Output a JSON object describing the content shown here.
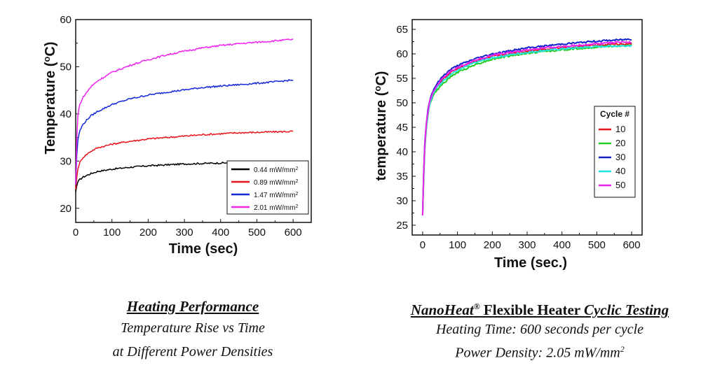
{
  "chart_data": [
    {
      "type": "line",
      "title": "",
      "xlabel": "Time (sec)",
      "ylabel": "Temperature (°C)",
      "ylabel_parts": {
        "pre": "Temperature (",
        "sup": "o",
        "post": "C)"
      },
      "xlim": [
        0,
        650
      ],
      "ylim": [
        17,
        60
      ],
      "xticks": [
        0,
        100,
        200,
        300,
        400,
        500,
        600
      ],
      "yticks": [
        20,
        30,
        40,
        50,
        60
      ],
      "grid": false,
      "legend_position": "bottom-right",
      "series": [
        {
          "name": "0.44 mW/mm2",
          "label_main": "0.44 mW/mm",
          "label_sup": "2",
          "color": "#000000",
          "x": [
            0,
            2,
            5,
            10,
            20,
            40,
            60,
            100,
            150,
            200,
            250,
            300,
            350,
            400,
            450,
            500,
            550,
            600
          ],
          "y": [
            23.5,
            24.5,
            25.5,
            26.0,
            26.6,
            27.3,
            27.8,
            28.3,
            28.7,
            29.0,
            29.2,
            29.4,
            29.5,
            29.6,
            29.7,
            29.7,
            29.8,
            29.8
          ]
        },
        {
          "name": "0.89 mW/mm2",
          "label_main": "0.89 mW/mm",
          "label_sup": "2",
          "color": "#e8141c",
          "x": [
            0,
            2,
            5,
            10,
            20,
            40,
            60,
            100,
            150,
            200,
            250,
            300,
            350,
            400,
            450,
            500,
            550,
            600
          ],
          "y": [
            24.0,
            26.0,
            28.0,
            29.5,
            30.8,
            32.0,
            32.8,
            33.6,
            34.2,
            34.7,
            35.0,
            35.3,
            35.6,
            35.8,
            36.0,
            36.1,
            36.2,
            36.3
          ]
        },
        {
          "name": "1.47 mW/mm2",
          "label_main": "1.47 mW/mm",
          "label_sup": "2",
          "color": "#1428d8",
          "x": [
            0,
            2,
            5,
            10,
            20,
            40,
            60,
            100,
            150,
            200,
            250,
            300,
            350,
            400,
            450,
            500,
            550,
            600
          ],
          "y": [
            25.0,
            30.0,
            34.0,
            36.2,
            37.8,
            39.5,
            40.5,
            42.0,
            43.2,
            44.0,
            44.6,
            45.1,
            45.6,
            45.9,
            46.2,
            46.5,
            46.8,
            47.2
          ]
        },
        {
          "name": "2.01 mW/mm2",
          "label_main": "2.01 mW/mm",
          "label_sup": "2",
          "color": "#ee22ee",
          "x": [
            0,
            2,
            5,
            10,
            20,
            40,
            60,
            100,
            150,
            200,
            250,
            300,
            350,
            400,
            450,
            500,
            550,
            600
          ],
          "y": [
            25.0,
            33.0,
            39.0,
            41.8,
            43.5,
            45.6,
            47.0,
            48.8,
            50.3,
            51.5,
            52.5,
            53.3,
            54.0,
            54.5,
            54.9,
            55.2,
            55.5,
            55.8
          ]
        }
      ]
    },
    {
      "type": "line",
      "title": "",
      "xlabel": "Time (sec.)",
      "ylabel": "temperature (°C)",
      "ylabel_parts": {
        "pre": "temperature (",
        "sup": "o",
        "post": "C)"
      },
      "xlim": [
        -30,
        630
      ],
      "ylim": [
        23,
        67
      ],
      "xticks": [
        0,
        100,
        200,
        300,
        400,
        500,
        600
      ],
      "yticks": [
        25,
        30,
        35,
        40,
        45,
        50,
        55,
        60,
        65
      ],
      "grid": false,
      "legend_title": "Cycle #",
      "legend_position": "right",
      "series": [
        {
          "name": "10",
          "color": "#e8141c",
          "x": [
            0,
            2,
            5,
            10,
            15,
            20,
            30,
            40,
            60,
            80,
            100,
            150,
            200,
            250,
            300,
            350,
            400,
            450,
            500,
            550,
            600
          ],
          "y": [
            27.0,
            33.0,
            40.0,
            45.0,
            48.0,
            50.0,
            52.0,
            53.2,
            55.0,
            56.2,
            57.0,
            58.5,
            59.5,
            60.0,
            60.5,
            61.0,
            61.2,
            61.5,
            61.8,
            62.0,
            62.0
          ]
        },
        {
          "name": "20",
          "color": "#22cc22",
          "x": [
            0,
            2,
            5,
            10,
            15,
            20,
            30,
            40,
            60,
            80,
            100,
            150,
            200,
            250,
            300,
            350,
            400,
            450,
            500,
            550,
            600
          ],
          "y": [
            27.0,
            32.0,
            39.0,
            44.5,
            47.5,
            49.5,
            51.5,
            52.5,
            54.0,
            55.3,
            56.2,
            57.8,
            58.9,
            59.6,
            60.1,
            60.5,
            60.8,
            61.1,
            61.4,
            61.6,
            61.7
          ]
        },
        {
          "name": "30",
          "color": "#1422cc",
          "x": [
            0,
            2,
            5,
            10,
            15,
            20,
            30,
            40,
            60,
            80,
            100,
            150,
            200,
            250,
            300,
            350,
            400,
            450,
            500,
            550,
            600
          ],
          "y": [
            27.0,
            33.5,
            40.5,
            45.5,
            48.5,
            50.5,
            52.5,
            53.8,
            55.6,
            56.8,
            57.6,
            59.0,
            60.0,
            60.6,
            61.2,
            61.6,
            62.0,
            62.3,
            62.6,
            62.8,
            63.0
          ]
        },
        {
          "name": "40",
          "color": "#22e4e4",
          "x": [
            0,
            2,
            5,
            10,
            15,
            20,
            30,
            40,
            60,
            80,
            100,
            150,
            200,
            250,
            300,
            350,
            400,
            450,
            500,
            550,
            600
          ],
          "y": [
            27.0,
            32.5,
            39.5,
            44.8,
            47.8,
            49.8,
            51.8,
            53.0,
            54.6,
            55.8,
            56.6,
            58.2,
            59.2,
            59.8,
            60.3,
            60.7,
            61.0,
            61.3,
            61.5,
            61.6,
            61.7
          ]
        },
        {
          "name": "50",
          "color": "#ee22ee",
          "x": [
            0,
            2,
            5,
            10,
            15,
            20,
            30,
            40,
            60,
            80,
            100,
            150,
            200,
            250,
            300,
            350,
            400,
            450,
            500,
            550,
            600
          ],
          "y": [
            27.0,
            33.0,
            40.0,
            45.2,
            48.2,
            50.2,
            52.2,
            53.4,
            55.2,
            56.4,
            57.2,
            58.7,
            59.7,
            60.3,
            60.8,
            61.2,
            61.5,
            61.8,
            62.1,
            62.3,
            62.4
          ]
        }
      ]
    }
  ],
  "captions": {
    "left": {
      "title": "Heating Performance",
      "line1": "Temperature Rise vs Time",
      "line2": "at Different Power Densities"
    },
    "right": {
      "title_brand": "NanoHeat",
      "title_reg": "®",
      "title_mid": " Flexible Heater ",
      "title_end": "Cyclic Testing",
      "line1": "Heating Time: 600 seconds per cycle",
      "line2_main": "Power Density:  2.05 mW/mm",
      "line2_sup": "2"
    }
  }
}
